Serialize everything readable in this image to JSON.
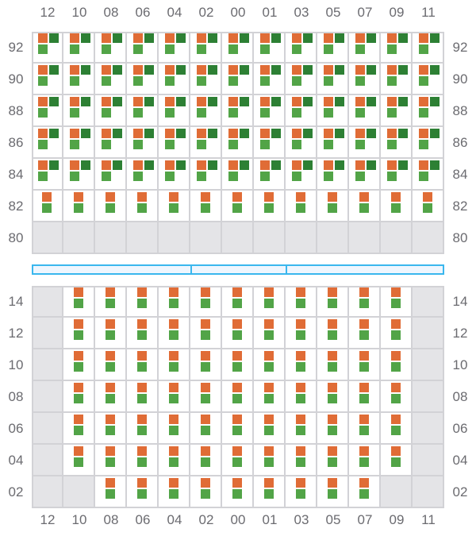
{
  "columns": [
    "12",
    "10",
    "08",
    "06",
    "04",
    "02",
    "00",
    "01",
    "03",
    "05",
    "07",
    "09",
    "11"
  ],
  "colors": {
    "orange": "#e06c36",
    "dark_green": "#2d8034",
    "light_green": "#52a447",
    "empty": "#e4e4e7",
    "bar": "#3ab7ee"
  },
  "top_section": {
    "rows": [
      {
        "label": "92",
        "cells": [
          "full",
          "full",
          "full",
          "full",
          "full",
          "full",
          "full",
          "full",
          "full",
          "full",
          "full",
          "full",
          "full"
        ]
      },
      {
        "label": "90",
        "cells": [
          "full",
          "full",
          "full",
          "full",
          "full",
          "full",
          "full",
          "full",
          "full",
          "full",
          "full",
          "full",
          "full"
        ]
      },
      {
        "label": "88",
        "cells": [
          "full",
          "full",
          "full",
          "full",
          "full",
          "full",
          "full",
          "full",
          "full",
          "full",
          "full",
          "full",
          "full"
        ]
      },
      {
        "label": "86",
        "cells": [
          "full",
          "full",
          "full",
          "full",
          "full",
          "full",
          "full",
          "full",
          "full",
          "full",
          "full",
          "full",
          "full"
        ]
      },
      {
        "label": "84",
        "cells": [
          "full",
          "full",
          "full",
          "full",
          "full",
          "full",
          "full",
          "full",
          "full",
          "full",
          "full",
          "full",
          "full"
        ]
      },
      {
        "label": "82",
        "cells": [
          "pair",
          "pair",
          "pair",
          "pair",
          "pair",
          "pair",
          "pair",
          "pair",
          "pair",
          "pair",
          "pair",
          "pair",
          "pair"
        ]
      },
      {
        "label": "80",
        "cells": [
          "empty",
          "empty",
          "empty",
          "empty",
          "empty",
          "empty",
          "empty",
          "empty",
          "empty",
          "empty",
          "empty",
          "empty",
          "empty"
        ]
      }
    ]
  },
  "bottom_section": {
    "rows": [
      {
        "label": "14",
        "cells": [
          "empty",
          "pair",
          "pair",
          "pair",
          "pair",
          "pair",
          "pair",
          "pair",
          "pair",
          "pair",
          "pair",
          "pair",
          "empty"
        ]
      },
      {
        "label": "12",
        "cells": [
          "empty",
          "pair",
          "pair",
          "pair",
          "pair",
          "pair",
          "pair",
          "pair",
          "pair",
          "pair",
          "pair",
          "pair",
          "empty"
        ]
      },
      {
        "label": "10",
        "cells": [
          "empty",
          "pair",
          "pair",
          "pair",
          "pair",
          "pair",
          "pair",
          "pair",
          "pair",
          "pair",
          "pair",
          "pair",
          "empty"
        ]
      },
      {
        "label": "08",
        "cells": [
          "empty",
          "pair",
          "pair",
          "pair",
          "pair",
          "pair",
          "pair",
          "pair",
          "pair",
          "pair",
          "pair",
          "pair",
          "empty"
        ]
      },
      {
        "label": "06",
        "cells": [
          "empty",
          "pair",
          "pair",
          "pair",
          "pair",
          "pair",
          "pair",
          "pair",
          "pair",
          "pair",
          "pair",
          "pair",
          "empty"
        ]
      },
      {
        "label": "04",
        "cells": [
          "empty",
          "pair",
          "pair",
          "pair",
          "pair",
          "pair",
          "pair",
          "pair",
          "pair",
          "pair",
          "pair",
          "pair",
          "empty"
        ]
      },
      {
        "label": "02",
        "cells": [
          "empty",
          "empty",
          "pair",
          "pair",
          "pair",
          "pair",
          "pair",
          "pair",
          "pair",
          "pair",
          "pair",
          "empty",
          "empty"
        ]
      }
    ]
  }
}
